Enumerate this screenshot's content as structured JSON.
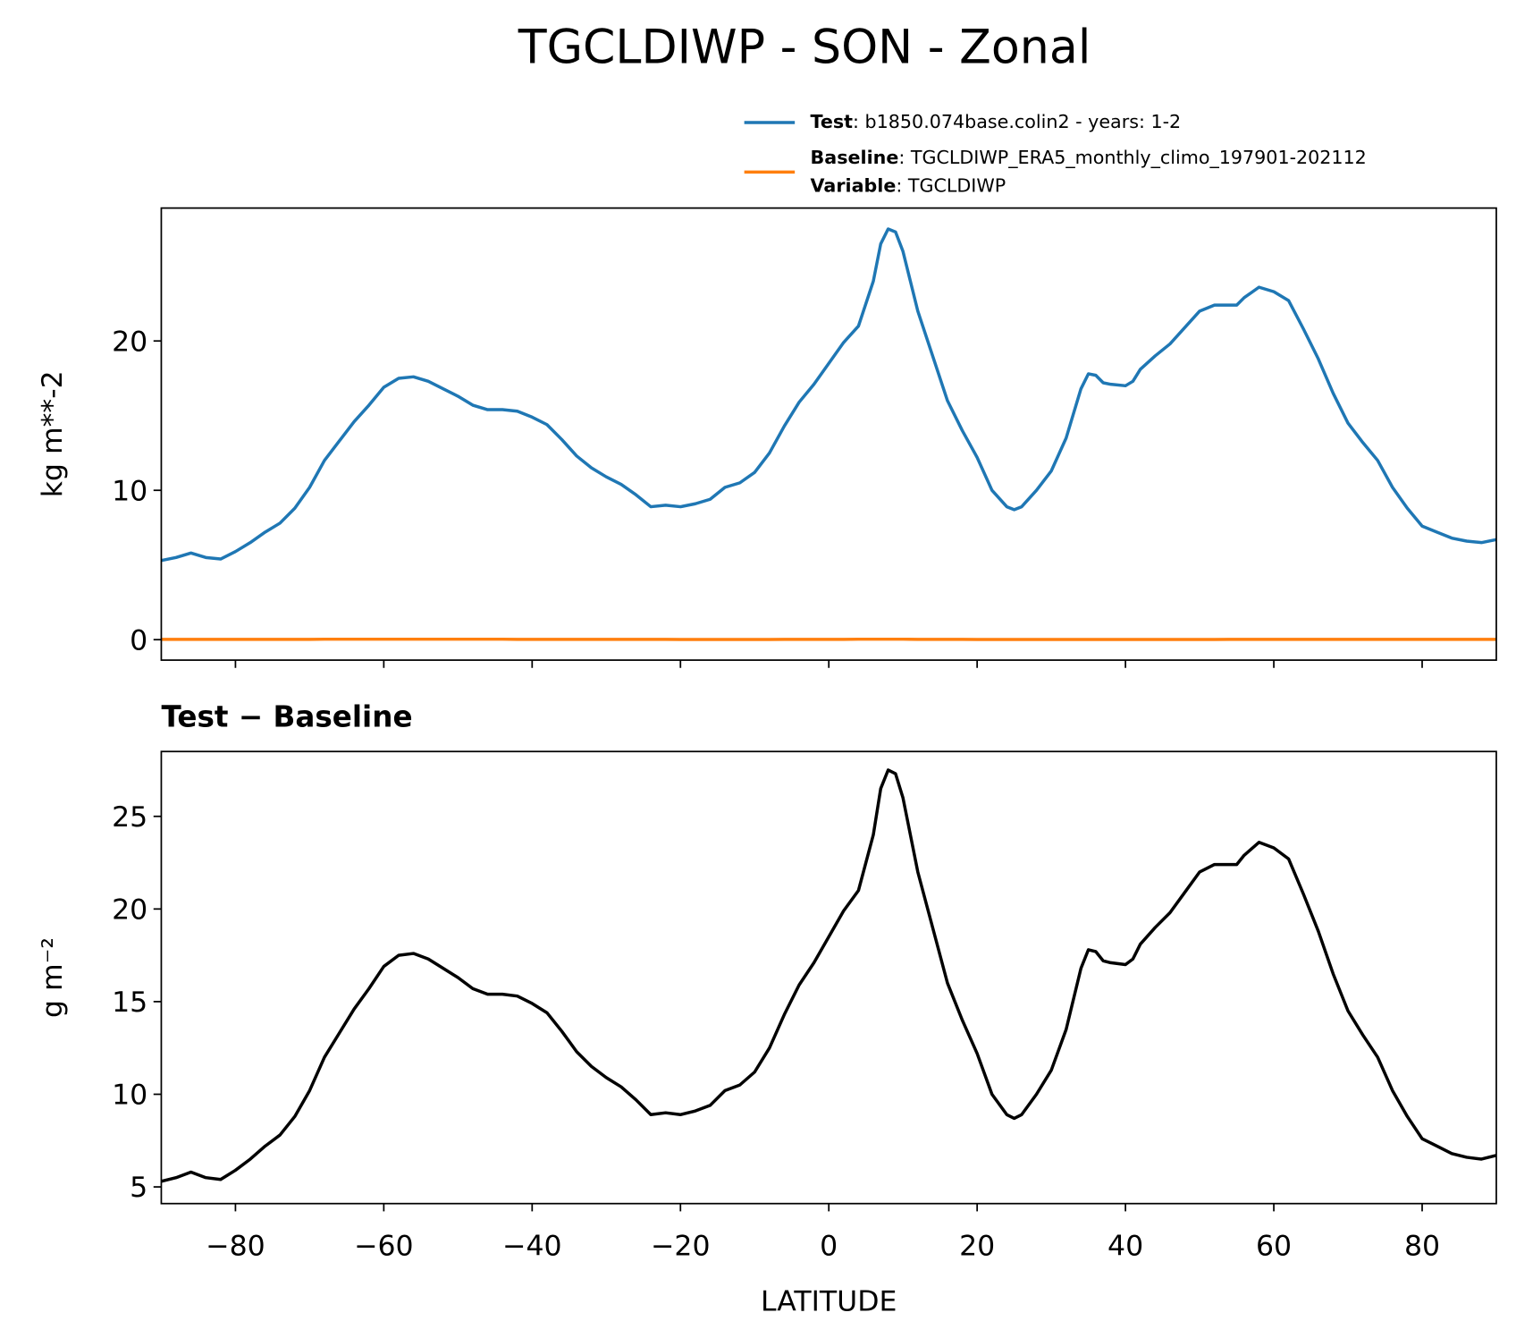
{
  "chart_data": [
    {
      "type": "line",
      "title": "TGCLDIWP - SON - Zonal",
      "ylabel": "kg m**-2",
      "x": [
        -90,
        -88,
        -86,
        -84,
        -82,
        -80,
        -78,
        -76,
        -74,
        -72,
        -70,
        -68,
        -66,
        -64,
        -62,
        -60,
        -58,
        -56,
        -54,
        -52,
        -50,
        -48,
        -46,
        -44,
        -42,
        -40,
        -38,
        -36,
        -34,
        -32,
        -30,
        -28,
        -26,
        -24,
        -22,
        -20,
        -18,
        -16,
        -14,
        -12,
        -10,
        -8,
        -6,
        -4,
        -2,
        0,
        2,
        4,
        6,
        7,
        8,
        9,
        10,
        12,
        14,
        16,
        18,
        20,
        22,
        24,
        25,
        26,
        28,
        30,
        32,
        34,
        35,
        36,
        37,
        38,
        40,
        41,
        42,
        44,
        46,
        48,
        50,
        52,
        54,
        55,
        56,
        58,
        60,
        62,
        64,
        66,
        68,
        70,
        72,
        74,
        76,
        78,
        80,
        82,
        84,
        86,
        88,
        90
      ],
      "series": [
        {
          "name": "Test",
          "description": ": b1850.074base.colin2 - years: 1-2",
          "color": "#1f77b4",
          "values": [
            5.3,
            5.5,
            5.8,
            5.5,
            5.4,
            5.9,
            6.5,
            7.2,
            7.8,
            8.8,
            10.2,
            12.0,
            13.3,
            14.6,
            15.7,
            16.9,
            17.5,
            17.6,
            17.3,
            16.8,
            16.3,
            15.7,
            15.4,
            15.4,
            15.3,
            14.9,
            14.4,
            13.4,
            12.3,
            11.5,
            10.9,
            10.4,
            9.7,
            8.9,
            9.0,
            8.9,
            9.1,
            9.4,
            10.2,
            10.5,
            11.2,
            12.5,
            14.3,
            15.9,
            17.1,
            18.5,
            19.9,
            21.0,
            24.0,
            26.5,
            27.5,
            27.3,
            26.0,
            22.0,
            19.0,
            16.0,
            14.0,
            12.2,
            10.0,
            8.9,
            8.7,
            8.9,
            10.0,
            11.3,
            13.5,
            16.8,
            17.8,
            17.7,
            17.2,
            17.1,
            17.0,
            17.3,
            18.1,
            19.0,
            19.8,
            20.9,
            22.0,
            22.4,
            22.4,
            22.4,
            22.9,
            23.6,
            23.3,
            22.7,
            20.8,
            18.8,
            16.5,
            14.5,
            13.2,
            12.0,
            10.2,
            8.8,
            7.6,
            7.2,
            6.8,
            6.6,
            6.5,
            6.7
          ]
        },
        {
          "name": "Baseline",
          "description": ": TGCLDIWP_ERA5_monthly_climo_197901-202112",
          "color": "#ff7f0e",
          "values": [
            0.02,
            0.02,
            0.02,
            0.02,
            0.02,
            0.02,
            0.02,
            0.02,
            0.02,
            0.02,
            0.02,
            0.03,
            0.03,
            0.03,
            0.03,
            0.03,
            0.03,
            0.03,
            0.03,
            0.03,
            0.03,
            0.03,
            0.03,
            0.03,
            0.02,
            0.02,
            0.02,
            0.02,
            0.02,
            0.02,
            0.02,
            0.02,
            0.02,
            0.02,
            0.02,
            0.01,
            0.01,
            0.01,
            0.01,
            0.01,
            0.01,
            0.01,
            0.02,
            0.02,
            0.02,
            0.02,
            0.02,
            0.03,
            0.03,
            0.03,
            0.03,
            0.03,
            0.03,
            0.02,
            0.02,
            0.02,
            0.02,
            0.01,
            0.01,
            0.01,
            0.01,
            0.01,
            0.01,
            0.01,
            0.01,
            0.01,
            0.01,
            0.01,
            0.01,
            0.01,
            0.01,
            0.01,
            0.01,
            0.01,
            0.01,
            0.01,
            0.01,
            0.01,
            0.02,
            0.02,
            0.02,
            0.02,
            0.02,
            0.02,
            0.02,
            0.02,
            0.02,
            0.02,
            0.02,
            0.02,
            0.02,
            0.02,
            0.02,
            0.02,
            0.02,
            0.02,
            0.02,
            0.02
          ]
        }
      ],
      "legend_extra": {
        "name": "Variable",
        "description": ": TGCLDIWP"
      },
      "xlim": [
        -90,
        90
      ],
      "xticks": [
        -80,
        -60,
        -40,
        -20,
        0,
        20,
        40,
        60,
        80
      ],
      "ylim": [
        -1.37,
        28.9
      ],
      "yticks": [
        0,
        10,
        20
      ]
    },
    {
      "type": "line",
      "title": "Test − Baseline",
      "ylabel": "g m⁻²",
      "xlabel": "LATITUDE",
      "x": [
        -90,
        -88,
        -86,
        -84,
        -82,
        -80,
        -78,
        -76,
        -74,
        -72,
        -70,
        -68,
        -66,
        -64,
        -62,
        -60,
        -58,
        -56,
        -54,
        -52,
        -50,
        -48,
        -46,
        -44,
        -42,
        -40,
        -38,
        -36,
        -34,
        -32,
        -30,
        -28,
        -26,
        -24,
        -22,
        -20,
        -18,
        -16,
        -14,
        -12,
        -10,
        -8,
        -6,
        -4,
        -2,
        0,
        2,
        4,
        6,
        7,
        8,
        9,
        10,
        12,
        14,
        16,
        18,
        20,
        22,
        24,
        25,
        26,
        28,
        30,
        32,
        34,
        35,
        36,
        37,
        38,
        40,
        41,
        42,
        44,
        46,
        48,
        50,
        52,
        54,
        55,
        56,
        58,
        60,
        62,
        64,
        66,
        68,
        70,
        72,
        74,
        76,
        78,
        80,
        82,
        84,
        86,
        88,
        90
      ],
      "series": [
        {
          "color": "#000000",
          "values": [
            5.3,
            5.5,
            5.8,
            5.5,
            5.4,
            5.9,
            6.5,
            7.2,
            7.8,
            8.8,
            10.2,
            12.0,
            13.3,
            14.6,
            15.7,
            16.9,
            17.5,
            17.6,
            17.3,
            16.8,
            16.3,
            15.7,
            15.4,
            15.4,
            15.3,
            14.9,
            14.4,
            13.4,
            12.3,
            11.5,
            10.9,
            10.4,
            9.7,
            8.9,
            9.0,
            8.9,
            9.1,
            9.4,
            10.2,
            10.5,
            11.2,
            12.5,
            14.3,
            15.9,
            17.1,
            18.5,
            19.9,
            21.0,
            24.0,
            26.5,
            27.5,
            27.3,
            26.0,
            22.0,
            19.0,
            16.0,
            14.0,
            12.2,
            10.0,
            8.9,
            8.7,
            8.9,
            10.0,
            11.3,
            13.5,
            16.8,
            17.8,
            17.7,
            17.2,
            17.1,
            17.0,
            17.3,
            18.1,
            19.0,
            19.8,
            20.9,
            22.0,
            22.4,
            22.4,
            22.4,
            22.9,
            23.6,
            23.3,
            22.7,
            20.8,
            18.8,
            16.5,
            14.5,
            13.2,
            12.0,
            10.2,
            8.8,
            7.6,
            7.2,
            6.8,
            6.6,
            6.5,
            6.7
          ]
        }
      ],
      "xlim": [
        -90,
        90
      ],
      "xticks": [
        {
          "value": -80,
          "label": "−80"
        },
        {
          "value": -60,
          "label": "−60"
        },
        {
          "value": -40,
          "label": "−40"
        },
        {
          "value": -20,
          "label": "−20"
        },
        0,
        20,
        40,
        60,
        80
      ],
      "ylim": [
        4.1,
        28.5
      ],
      "yticks": [
        5,
        10,
        15,
        20,
        25
      ]
    }
  ]
}
